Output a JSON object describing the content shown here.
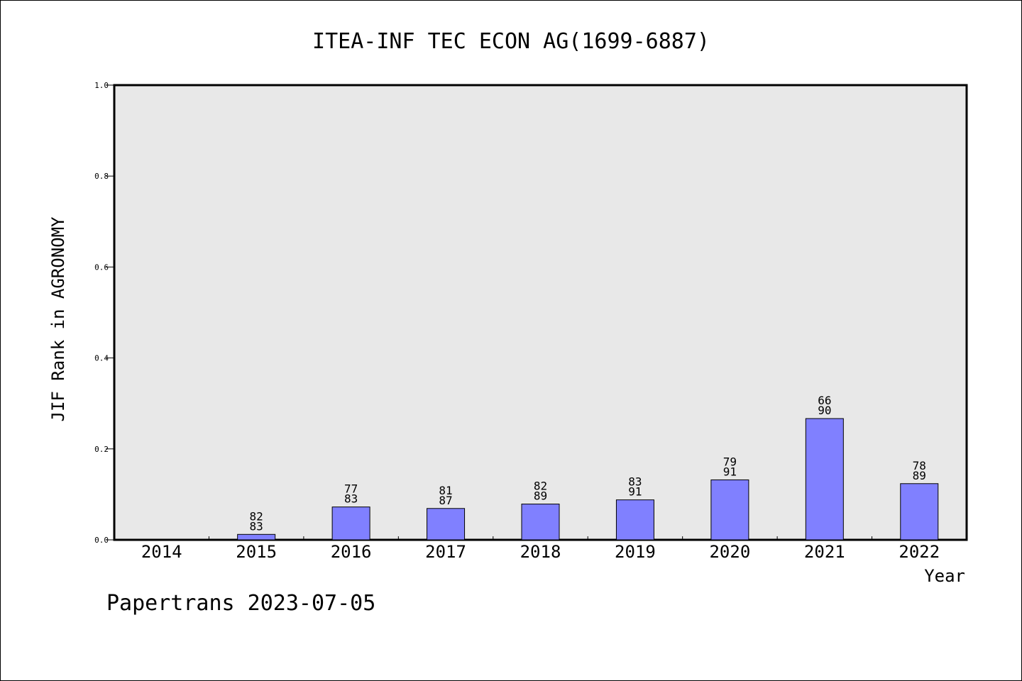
{
  "footer": "Papertrans 2023-07-05",
  "chart_data": {
    "type": "bar",
    "title": "ITEA-INF TEC ECON AG(1699-6887)",
    "xlabel": "Year",
    "ylabel": "JIF Rank in AGRONOMY",
    "ylim": [
      0.0,
      1.0
    ],
    "yticks": [
      "0.0",
      "0.2",
      "0.4",
      "0.6",
      "0.8",
      "1.0"
    ],
    "categories": [
      "2014",
      "2015",
      "2016",
      "2017",
      "2018",
      "2019",
      "2020",
      "2021",
      "2022"
    ],
    "values": [
      null,
      0.012,
      0.0723,
      0.069,
      0.0787,
      0.0879,
      0.1319,
      0.2667,
      0.1236
    ],
    "labels": [
      null,
      [
        "82",
        "83"
      ],
      [
        "77",
        "83"
      ],
      [
        "81",
        "87"
      ],
      [
        "82",
        "89"
      ],
      [
        "83",
        "91"
      ],
      [
        "79",
        "91"
      ],
      [
        "66",
        "90"
      ],
      [
        "78",
        "89"
      ]
    ],
    "grid": false,
    "background": "#e8e8e8",
    "bar_color": "#8080ff"
  }
}
